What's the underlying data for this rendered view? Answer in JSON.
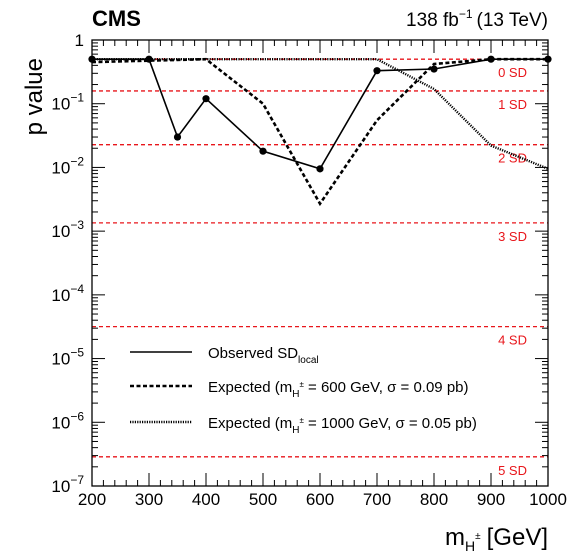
{
  "chart_data": {
    "type": "line",
    "header": {
      "experiment": "CMS",
      "lumi_value": "138 fb",
      "lumi_exp": "−1",
      "energy": "(13 TeV)"
    },
    "xlabel": {
      "main": "m",
      "sub": "H",
      "sup": "±",
      "unit": "[GeV]"
    },
    "ylabel": "p value",
    "xlim": [
      200,
      1000
    ],
    "ylim": [
      1e-07,
      1
    ],
    "yscale": "log",
    "x_ticks": [
      200,
      300,
      400,
      500,
      600,
      700,
      800,
      900,
      1000
    ],
    "y_ticks": [
      {
        "value": 1,
        "base": "1",
        "exp": ""
      },
      {
        "value": 0.1,
        "base": "10",
        "exp": "−1"
      },
      {
        "value": 0.01,
        "base": "10",
        "exp": "−2"
      },
      {
        "value": 0.001,
        "base": "10",
        "exp": "−3"
      },
      {
        "value": 0.0001,
        "base": "10",
        "exp": "−4"
      },
      {
        "value": 1e-05,
        "base": "10",
        "exp": "−5"
      },
      {
        "value": 1e-06,
        "base": "10",
        "exp": "−6"
      },
      {
        "value": 1e-07,
        "base": "10",
        "exp": "−7"
      }
    ],
    "sd_lines": [
      {
        "label": "0 SD",
        "p": 0.5
      },
      {
        "label": "1 SD",
        "p": 0.1587
      },
      {
        "label": "2 SD",
        "p": 0.02275
      },
      {
        "label": "3 SD",
        "p": 0.00135
      },
      {
        "label": "4 SD",
        "p": 3.17e-05
      },
      {
        "label": "5 SD",
        "p": 2.87e-07
      }
    ],
    "series": [
      {
        "key": "observed",
        "legend": {
          "text": "Observed SD",
          "sub": "local"
        },
        "style": "solid",
        "markers": true,
        "x": [
          200,
          300,
          350,
          400,
          500,
          600,
          700,
          800,
          900,
          1000
        ],
        "y": [
          0.5,
          0.5,
          0.03,
          0.12,
          0.018,
          0.0095,
          0.33,
          0.35,
          0.5,
          0.5
        ]
      },
      {
        "key": "expected600",
        "legend": {
          "prefix": "Expected (",
          "m": "m",
          "msub": "H",
          "msup": "±",
          "suffix": " = 600 GeV, σ = 0.09 pb)"
        },
        "style": "dashed",
        "markers": false,
        "x": [
          200,
          400,
          500,
          600,
          700,
          800,
          900,
          1000
        ],
        "y": [
          0.45,
          0.5,
          0.1,
          0.0027,
          0.055,
          0.42,
          0.5,
          0.5
        ]
      },
      {
        "key": "expected1000",
        "legend": {
          "prefix": "Expected (",
          "m": "m",
          "msub": "H",
          "msup": "±",
          "suffix": " = 1000 GeV, σ = 0.05 pb)"
        },
        "style": "dotted",
        "markers": false,
        "x": [
          200,
          700,
          800,
          900,
          1000
        ],
        "y": [
          0.5,
          0.5,
          0.17,
          0.022,
          0.0095
        ]
      }
    ],
    "grid": false,
    "legend_position": "bottom-left"
  }
}
